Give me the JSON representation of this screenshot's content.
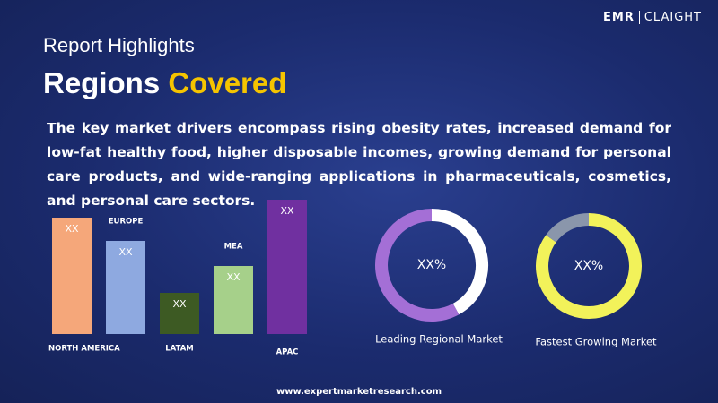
{
  "header": {
    "kicker": "Report Highlights",
    "title_start": "Regions",
    "title_end": "Covered",
    "logo_left": "EMR",
    "logo_right": "CLAIGHT"
  },
  "description": "The key market drivers encompass rising obesity rates, increased demand for low-fat healthy food, higher disposable incomes, growing demand for personal care products, and wide-ranging applications in pharmaceuticals, cosmetics, and personal care sectors.",
  "footer": "www.expertmarketresearch.com",
  "chart_data": [
    {
      "type": "bar",
      "categories": [
        "NORTH AMERICA",
        "EUROPE",
        "LATAM",
        "MEA",
        "APAC"
      ],
      "values": [
        130,
        104,
        46,
        76,
        150
      ],
      "value_labels": [
        "XX",
        "XX",
        "XX",
        "XX",
        "XX"
      ],
      "colors": [
        "#f5a77a",
        "#8ea9e0",
        "#3d5a23",
        "#a6d08a",
        "#7030a0"
      ]
    },
    {
      "type": "donut",
      "title": "Leading Regional Market",
      "center_label": "XX%",
      "values": [
        42,
        58
      ],
      "colors": [
        "#ffffff",
        "#a46fd6"
      ]
    },
    {
      "type": "donut",
      "title": "Fastest Growing Market",
      "center_label": "XX%",
      "values": [
        85,
        15
      ],
      "colors": [
        "#f2f25a",
        "#8a96ab"
      ]
    }
  ]
}
